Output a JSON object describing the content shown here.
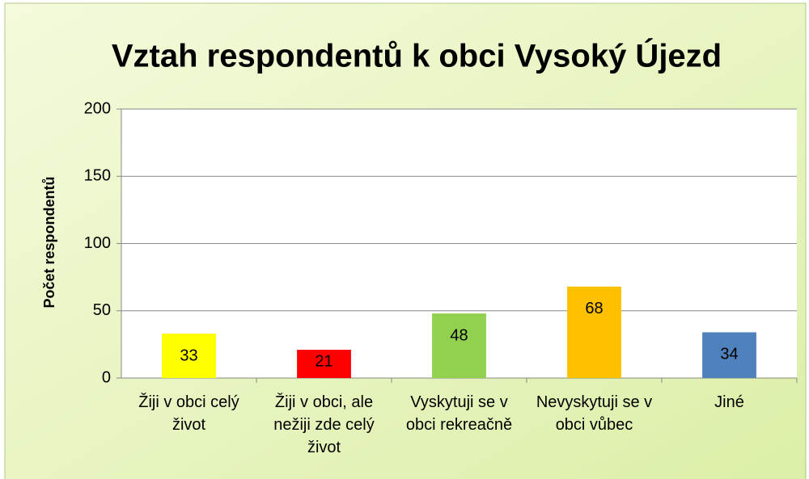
{
  "chart_data": {
    "type": "bar",
    "title": "Vztah respondentů k obci Vysoký Újezd",
    "y_label": "Počet respondentů",
    "categories": [
      "Žiji v obci celý život",
      "Žiji v obci, ale nežiji zde celý život",
      "Vyskytuji se v obci rekreačně",
      "Nevyskytuji se v obci vůbec",
      "Jiné"
    ],
    "values": [
      33,
      21,
      48,
      68,
      34
    ],
    "colors": [
      "#ffff00",
      "#ff0000",
      "#92d050",
      "#ffc000",
      "#4f81bd"
    ],
    "ylim": [
      0,
      200
    ],
    "yticks": [
      0,
      50,
      100,
      150,
      200
    ],
    "grid": true
  }
}
